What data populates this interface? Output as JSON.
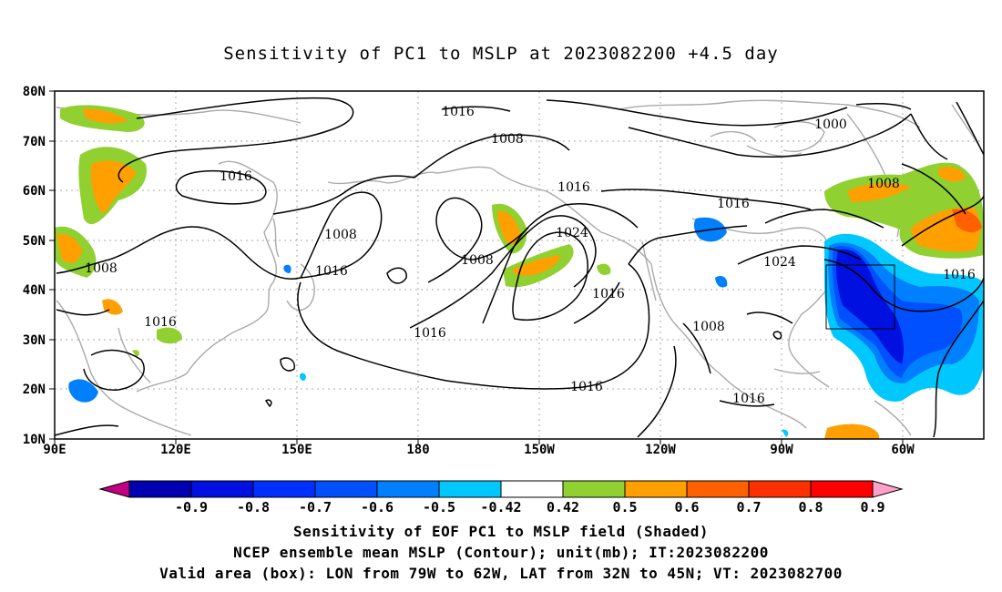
{
  "title": "Sensitivity of PC1 to MSLP at 2023082200 +4.5 day",
  "lat_labels": [
    "80N",
    "70N",
    "60N",
    "50N",
    "40N",
    "30N",
    "20N",
    "10N"
  ],
  "lon_labels": [
    "90E",
    "120E",
    "150E",
    "180",
    "150W",
    "120W",
    "90W",
    "60W"
  ],
  "contour_labels": [
    {
      "text": "1016",
      "name": "isobar-label-1016-arctic"
    },
    {
      "text": "1008",
      "name": "isobar-label-1008-alaska"
    },
    {
      "text": "1000",
      "name": "isobar-label-1000-greenland"
    },
    {
      "text": "1016",
      "name": "isobar-label-1016-siberia"
    },
    {
      "text": "1016",
      "name": "isobar-label-1016-gulf-alaska"
    },
    {
      "text": "1016",
      "name": "isobar-label-1016-canada"
    },
    {
      "text": "1008",
      "name": "isobar-label-1008-labrador"
    },
    {
      "text": "1008",
      "name": "isobar-label-1008-okhotsk"
    },
    {
      "text": "1024",
      "name": "isobar-label-1024-pacific-high"
    },
    {
      "text": "1008",
      "name": "isobar-label-1008-aleutian"
    },
    {
      "text": "1016",
      "name": "isobar-label-1016-nw-pacific"
    },
    {
      "text": "1024",
      "name": "isobar-label-1024-atlantic"
    },
    {
      "text": "1008",
      "name": "isobar-label-1008-central-asia"
    },
    {
      "text": "1016",
      "name": "isobar-label-1016-atlantic-east"
    },
    {
      "text": "1016",
      "name": "isobar-label-1016-east-pacific"
    },
    {
      "text": "1008",
      "name": "isobar-label-1008-china"
    },
    {
      "text": "1016",
      "name": "isobar-label-1016-central-pacific"
    },
    {
      "text": "1016",
      "name": "isobar-label-1016-mexico"
    },
    {
      "text": "1016",
      "name": "isobar-label-1016-subtropical"
    },
    {
      "text": "1016",
      "name": "isobar-label-1016-caribbean"
    }
  ],
  "colorbar": {
    "labels": [
      "-0.9",
      "-0.8",
      "-0.7",
      "-0.6",
      "-0.5",
      "-0.42",
      "0.42",
      "0.5",
      "0.6",
      "0.7",
      "0.8",
      "0.9"
    ],
    "colors": [
      "#c00080",
      "#0000b0",
      "#0010e0",
      "#0030ff",
      "#0050ff",
      "#0080ff",
      "#00c8ff",
      "#ffffff",
      "#90d030",
      "#ffa000",
      "#ff6000",
      "#ff3000",
      "#ff0000",
      "#ffa0c8"
    ]
  },
  "footer": {
    "line1": "Sensitivity of EOF PC1 to MSLP field (Shaded)",
    "line2": "NCEP ensemble mean MSLP (Contour); unit(mb); IT:2023082200",
    "line3": "Valid area (box): LON from 79W to 62W, LAT from 32N to 45N; VT: 2023082700"
  }
}
